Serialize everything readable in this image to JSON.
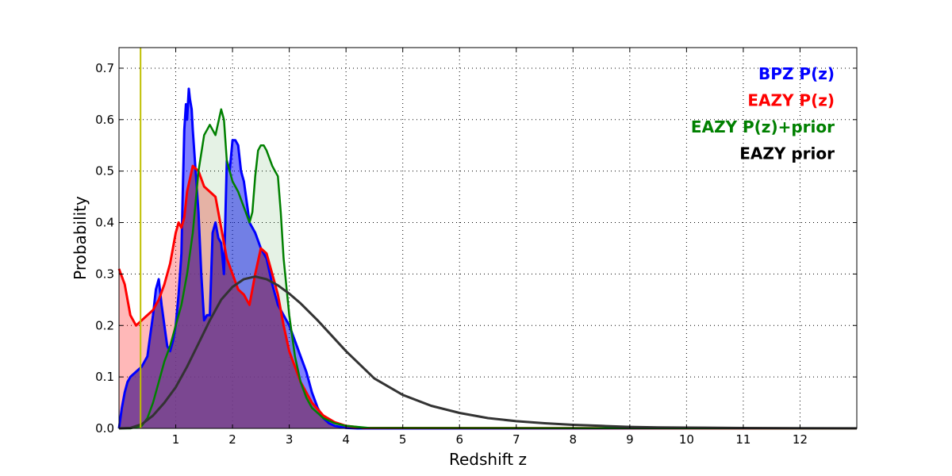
{
  "chart_data": {
    "type": "area",
    "xlabel": "Redshift z",
    "ylabel": "Probability",
    "xlim": [
      0,
      13
    ],
    "ylim": [
      0,
      0.74
    ],
    "grid": true,
    "legend_position": "top-right",
    "x_ticks": [
      1,
      2,
      3,
      4,
      5,
      6,
      7,
      8,
      9,
      10,
      11,
      12
    ],
    "x_tick_labels": [
      "1",
      "2",
      "3",
      "4",
      "5",
      "6",
      "7",
      "8",
      "9",
      "10",
      "11",
      "12"
    ],
    "y_ticks": [
      0.0,
      0.1,
      0.2,
      0.3,
      0.4,
      0.5,
      0.6,
      0.7
    ],
    "y_tick_labels": [
      "0.0",
      "0.1",
      "0.2",
      "0.3",
      "0.4",
      "0.5",
      "0.6",
      "0.7"
    ],
    "vline": {
      "x": 0.38,
      "color": "#bfbf00"
    },
    "series": [
      {
        "name": "EAZY P(z)",
        "color": "#ff0000",
        "fill": "#ff0000",
        "fill_opacity": 0.28,
        "stroke_width": 3,
        "x": [
          0,
          0.1,
          0.2,
          0.3,
          0.4,
          0.5,
          0.6,
          0.7,
          0.8,
          0.9,
          1.0,
          1.05,
          1.1,
          1.15,
          1.2,
          1.3,
          1.4,
          1.5,
          1.6,
          1.7,
          1.8,
          1.9,
          2.0,
          2.1,
          2.2,
          2.3,
          2.4,
          2.5,
          2.6,
          2.7,
          2.8,
          2.9,
          3.0,
          3.1,
          3.2,
          3.4,
          3.6,
          3.8,
          4.0,
          4.3,
          13
        ],
        "y": [
          0.31,
          0.28,
          0.22,
          0.2,
          0.21,
          0.22,
          0.23,
          0.25,
          0.28,
          0.32,
          0.38,
          0.4,
          0.39,
          0.41,
          0.46,
          0.51,
          0.5,
          0.47,
          0.46,
          0.45,
          0.39,
          0.33,
          0.3,
          0.27,
          0.26,
          0.24,
          0.3,
          0.35,
          0.34,
          0.3,
          0.26,
          0.2,
          0.15,
          0.12,
          0.09,
          0.05,
          0.025,
          0.012,
          0.005,
          0.001,
          0
        ]
      },
      {
        "name": "BPZ P(z)",
        "color": "#0000ff",
        "fill": "#0000ff",
        "fill_opacity": 0.5,
        "stroke_width": 3,
        "x": [
          0,
          0.05,
          0.1,
          0.15,
          0.2,
          0.3,
          0.4,
          0.5,
          0.55,
          0.6,
          0.65,
          0.7,
          0.75,
          0.8,
          0.85,
          0.9,
          0.95,
          1.0,
          1.05,
          1.1,
          1.12,
          1.15,
          1.18,
          1.2,
          1.23,
          1.25,
          1.28,
          1.3,
          1.35,
          1.4,
          1.45,
          1.5,
          1.55,
          1.6,
          1.65,
          1.7,
          1.75,
          1.8,
          1.85,
          1.9,
          1.95,
          2.0,
          2.05,
          2.1,
          2.15,
          2.2,
          2.25,
          2.3,
          2.4,
          2.5,
          2.6,
          2.7,
          2.8,
          2.9,
          3.0,
          3.1,
          3.2,
          3.3,
          3.4,
          3.5,
          3.6,
          3.7,
          3.8,
          4.0,
          4.2,
          13
        ],
        "y": [
          0.0,
          0.04,
          0.07,
          0.09,
          0.1,
          0.11,
          0.12,
          0.14,
          0.18,
          0.22,
          0.27,
          0.29,
          0.24,
          0.2,
          0.16,
          0.15,
          0.17,
          0.2,
          0.26,
          0.34,
          0.44,
          0.58,
          0.63,
          0.6,
          0.66,
          0.64,
          0.62,
          0.58,
          0.5,
          0.42,
          0.3,
          0.21,
          0.22,
          0.22,
          0.38,
          0.4,
          0.37,
          0.36,
          0.3,
          0.52,
          0.5,
          0.56,
          0.56,
          0.55,
          0.5,
          0.48,
          0.44,
          0.4,
          0.38,
          0.35,
          0.33,
          0.28,
          0.24,
          0.22,
          0.2,
          0.17,
          0.14,
          0.11,
          0.07,
          0.04,
          0.02,
          0.01,
          0.005,
          0.001,
          0,
          0
        ]
      },
      {
        "name": "EAZY P(z)+prior",
        "color": "#008000",
        "fill": "#008000",
        "fill_opacity": 0.1,
        "stroke_width": 2.5,
        "x": [
          0,
          0.2,
          0.4,
          0.5,
          0.6,
          0.7,
          0.8,
          0.9,
          1.0,
          1.1,
          1.2,
          1.3,
          1.4,
          1.5,
          1.6,
          1.7,
          1.8,
          1.85,
          1.9,
          2.0,
          2.1,
          2.2,
          2.3,
          2.35,
          2.4,
          2.45,
          2.5,
          2.55,
          2.6,
          2.7,
          2.75,
          2.8,
          2.85,
          2.9,
          3.0,
          3.1,
          3.2,
          3.3,
          3.4,
          3.6,
          3.8,
          4.0,
          4.4,
          13
        ],
        "y": [
          0,
          0,
          0.005,
          0.02,
          0.05,
          0.09,
          0.13,
          0.16,
          0.2,
          0.24,
          0.3,
          0.38,
          0.5,
          0.57,
          0.59,
          0.57,
          0.62,
          0.6,
          0.52,
          0.48,
          0.46,
          0.43,
          0.4,
          0.42,
          0.49,
          0.54,
          0.55,
          0.55,
          0.54,
          0.51,
          0.5,
          0.49,
          0.42,
          0.33,
          0.22,
          0.14,
          0.09,
          0.06,
          0.04,
          0.02,
          0.01,
          0.005,
          0.001,
          0
        ]
      },
      {
        "name": "EAZY prior",
        "color": "#333333",
        "fill": "#000000",
        "fill_opacity": 0,
        "stroke_width": 3,
        "x": [
          0,
          0.2,
          0.4,
          0.6,
          0.8,
          1.0,
          1.2,
          1.4,
          1.6,
          1.8,
          2.0,
          2.2,
          2.4,
          2.6,
          2.8,
          3.0,
          3.2,
          3.5,
          4.0,
          4.5,
          5.0,
          5.5,
          6.0,
          6.5,
          7.0,
          7.5,
          8.0,
          8.5,
          9.0,
          9.5,
          10,
          11,
          12,
          13
        ],
        "y": [
          0,
          0.001,
          0.008,
          0.025,
          0.05,
          0.08,
          0.12,
          0.165,
          0.21,
          0.25,
          0.275,
          0.29,
          0.295,
          0.29,
          0.278,
          0.262,
          0.243,
          0.21,
          0.15,
          0.097,
          0.065,
          0.044,
          0.03,
          0.02,
          0.014,
          0.01,
          0.007,
          0.005,
          0.003,
          0.002,
          0.0015,
          0.0008,
          0.0004,
          0.0002
        ]
      }
    ],
    "overlap_fill": {
      "color": "#7f3f7f",
      "fill_opacity": 0.75
    },
    "legend": [
      {
        "label": "BPZ P(z)",
        "color": "#0000ff"
      },
      {
        "label": "EAZY P(z)",
        "color": "#ff0000"
      },
      {
        "label": "EAZY P(z)+prior",
        "color": "#008000"
      },
      {
        "label": "EAZY prior",
        "color": "#000000"
      }
    ]
  }
}
